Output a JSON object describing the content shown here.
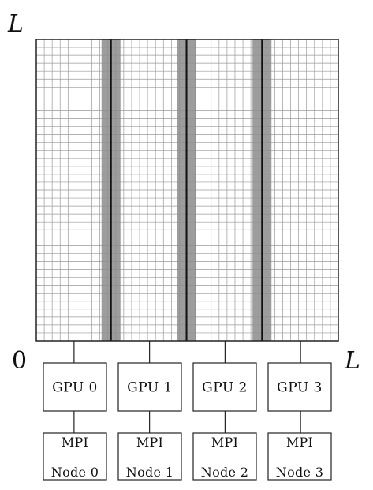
{
  "axes": {
    "y_top_label": "L",
    "origin_label": "0",
    "x_right_label": "L"
  },
  "lattice": {
    "partitions": 4
  },
  "gpus": [
    {
      "label": "GPU 0",
      "node_line1": "MPI",
      "node_line2": "Node 0"
    },
    {
      "label": "GPU 1",
      "node_line1": "MPI",
      "node_line2": "Node 1"
    },
    {
      "label": "GPU 2",
      "node_line1": "MPI",
      "node_line2": "Node 2"
    },
    {
      "label": "GPU 3",
      "node_line1": "MPI",
      "node_line2": "Node 3"
    }
  ],
  "colors": {
    "grid_line": "#9a9a9a",
    "border": "#222222",
    "halo_fill": "#8c8c8c",
    "divider": "#111111",
    "box_stroke": "#222222"
  }
}
